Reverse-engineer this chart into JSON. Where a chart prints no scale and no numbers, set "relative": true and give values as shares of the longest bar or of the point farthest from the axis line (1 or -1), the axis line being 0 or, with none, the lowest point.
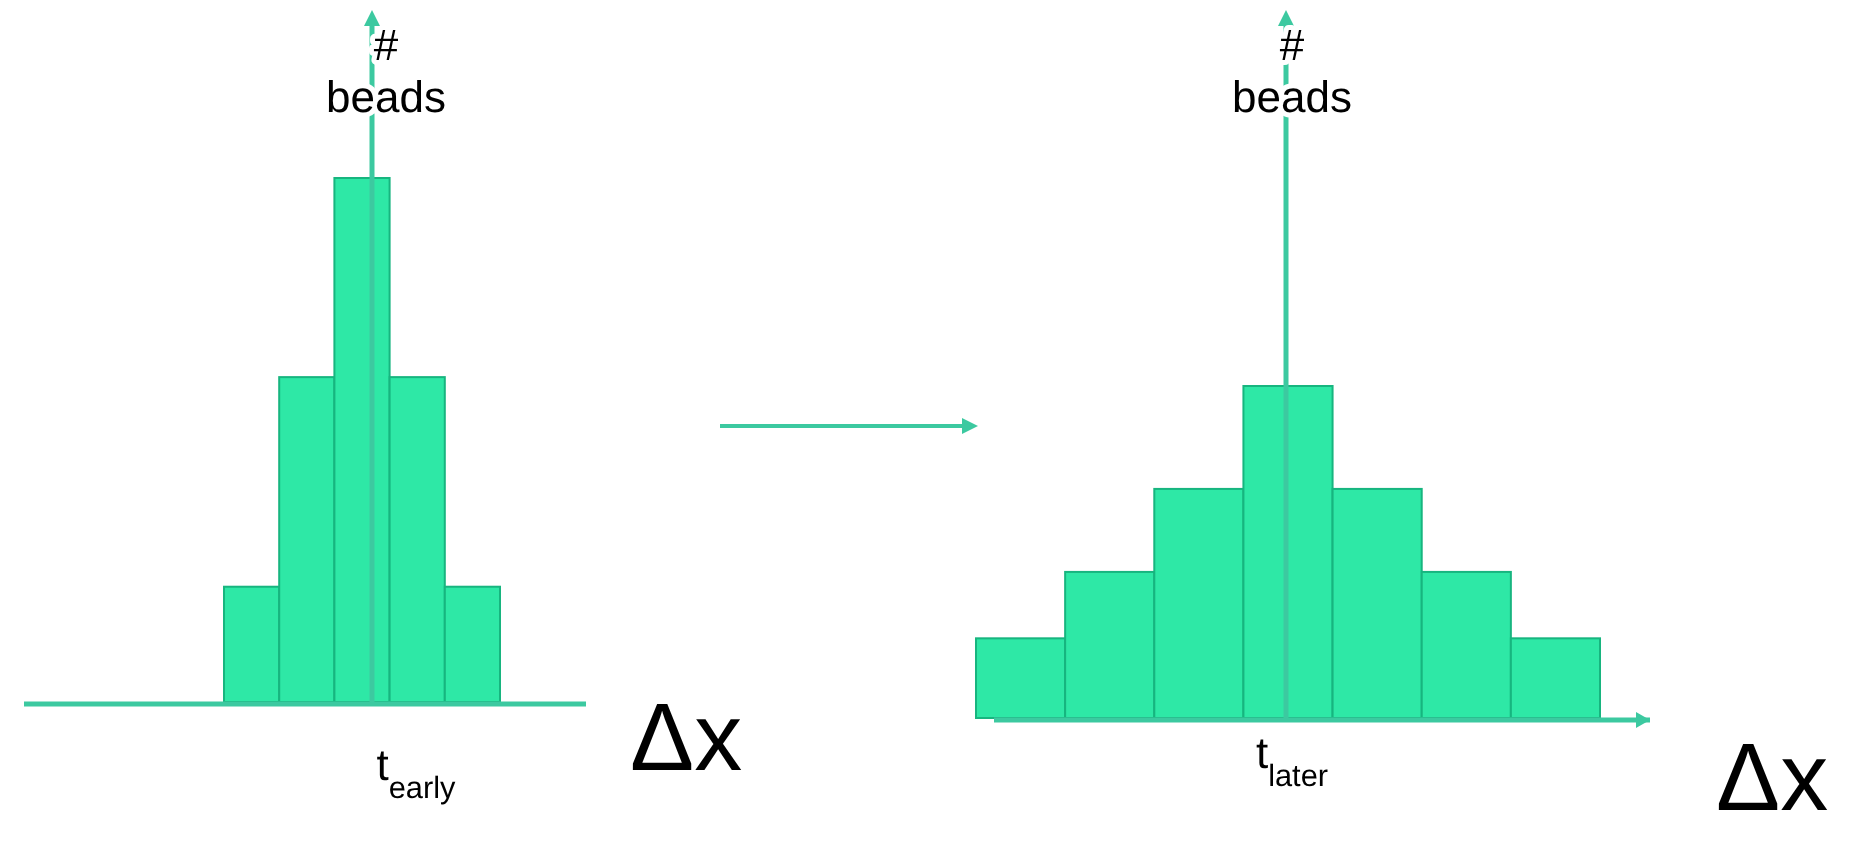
{
  "chart_data": [
    {
      "type": "bar",
      "relative": true,
      "categories": [
        null,
        null,
        null,
        null,
        null
      ],
      "values": [
        0.22,
        0.62,
        1,
        0.62,
        0.22
      ],
      "color": "#2ee8a6",
      "ylabel": "# beads",
      "xlabel": "Δx",
      "annotations": [
        "t$_{early}$"
      ]
    },
    {
      "type": "bar",
      "relative": true,
      "categories": [
        null,
        null,
        null,
        null,
        null,
        null,
        null
      ],
      "values": [
        0.24,
        0.44,
        0.69,
        1,
        0.69,
        0.44,
        0.24
      ],
      "color": "#2ee8a6",
      "ylabel": "# beads",
      "xlabel": "Δx",
      "annotations": [
        "t$_{later}$"
      ]
    }
  ]
}
